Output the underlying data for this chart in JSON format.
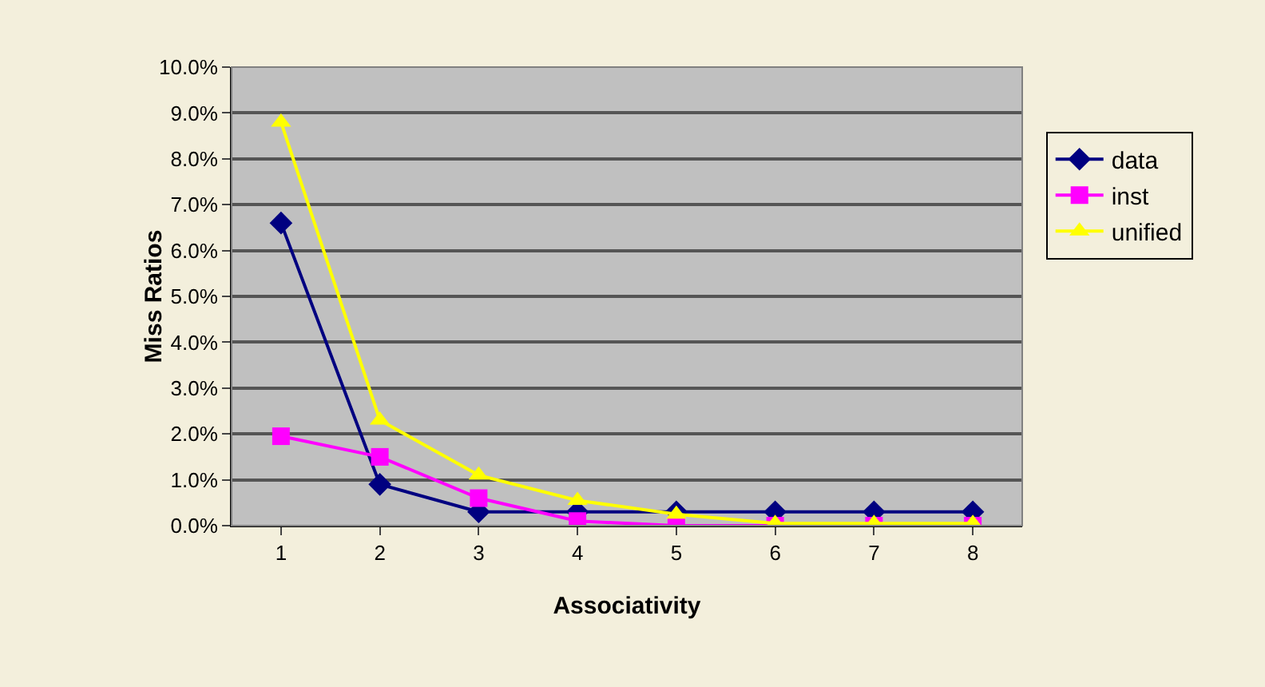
{
  "chart_data": {
    "type": "line",
    "xlabel": "Associativity",
    "ylabel": "Miss Ratios",
    "categories": [
      "1",
      "2",
      "3",
      "4",
      "5",
      "6",
      "7",
      "8"
    ],
    "series": [
      {
        "name": "data",
        "color": "#000080",
        "marker": "diamond",
        "values": [
          6.6,
          0.9,
          0.3,
          0.3,
          0.3,
          0.3,
          0.3,
          0.3
        ]
      },
      {
        "name": "inst",
        "color": "#ff00ff",
        "marker": "square",
        "values": [
          1.95,
          1.5,
          0.6,
          0.1,
          0,
          0,
          0,
          0
        ]
      },
      {
        "name": "unified",
        "color": "#ffff00",
        "marker": "triangle",
        "values": [
          8.8,
          2.3,
          1.1,
          0.55,
          0.25,
          0.05,
          0.05,
          0.05
        ]
      }
    ],
    "ylim": [
      0,
      10
    ],
    "yticks": [
      {
        "value": 0,
        "label": "0.0%"
      },
      {
        "value": 1,
        "label": "1.0%"
      },
      {
        "value": 2,
        "label": "2.0%"
      },
      {
        "value": 3,
        "label": "3.0%"
      },
      {
        "value": 4,
        "label": "4.0%"
      },
      {
        "value": 5,
        "label": "5.0%"
      },
      {
        "value": 6,
        "label": "6.0%"
      },
      {
        "value": 7,
        "label": "7.0%"
      },
      {
        "value": 8,
        "label": "8.0%"
      },
      {
        "value": 9,
        "label": "9.0%"
      },
      {
        "value": 10,
        "label": "10.0%"
      }
    ],
    "grid": "y",
    "legend": "right"
  }
}
